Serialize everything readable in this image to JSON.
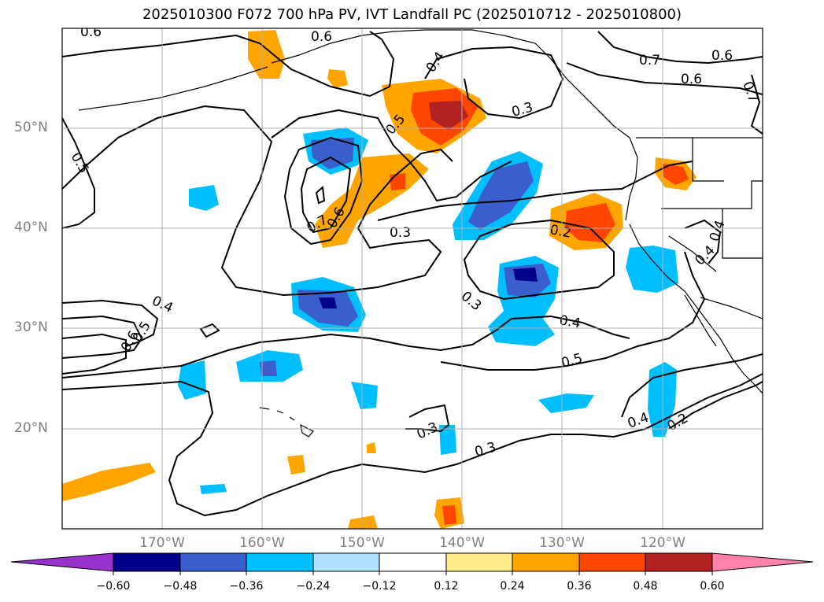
{
  "title": "2025010300 F072 700 hPa PV, IVT Landfall PC (2025010712 - 2025010800)",
  "lat_labels": [
    "50°N",
    "40°N",
    "30°N",
    "20°N"
  ],
  "lon_labels": [
    "170°W",
    "160°W",
    "150°W",
    "140°W",
    "130°W",
    "120°W"
  ],
  "colorbar": {
    "labels": [
      "−0.60",
      "−0.48",
      "−0.36",
      "−0.24",
      "−0.12",
      "0.12",
      "0.24",
      "0.36",
      "0.48",
      "0.60"
    ],
    "colors": [
      "#9932cc",
      "#00008b",
      "#3a5fcd",
      "#00bfff",
      "#b0e2ff",
      "#ffffff",
      "#ffec8b",
      "#ffa500",
      "#ff4500",
      "#b22222",
      "#ff82ab"
    ]
  },
  "contour_labels": [
    "0.6",
    "0.5",
    "0.4",
    "0.6",
    "0.3",
    "0.7",
    "0.6",
    "0.6",
    "0.7",
    "0.5",
    "0.7",
    "0.6",
    "0.3",
    "0.2",
    "0.4",
    "0.4",
    "0.3",
    "0.4",
    "0.4",
    "0.6",
    "0.5",
    "0.5",
    "0.3",
    "0.3",
    "0.4",
    "0.2"
  ]
}
